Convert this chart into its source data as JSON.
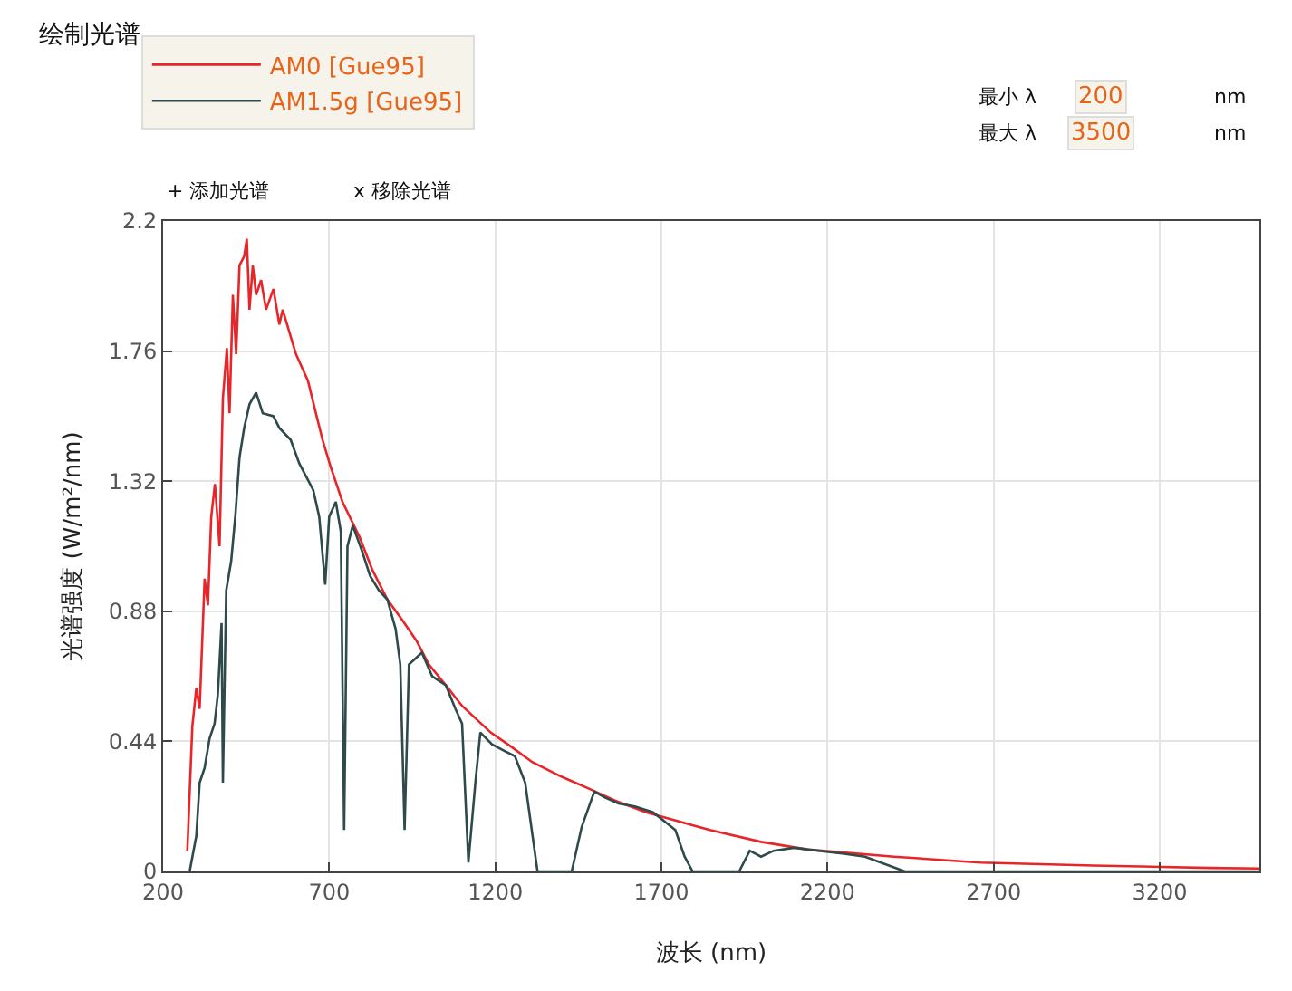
{
  "chart_data": {
    "type": "line",
    "title": "绘制光谱",
    "xlabel": "波长 (nm)",
    "ylabel": "光谱强度 (W/m²/nm)",
    "xlim": [
      200,
      3500
    ],
    "xticks": [
      200,
      700,
      1200,
      1700,
      2200,
      2700,
      3200
    ],
    "ylim": [
      0,
      2.2
    ],
    "yticks": [
      0,
      0.44,
      0.88,
      1.32,
      1.76,
      2.2
    ],
    "grid": true,
    "legend": "top left",
    "marker": "none",
    "line_style": "solid",
    "annotations": [
      "+ 添加光谱",
      "x 移除光谱",
      "最小 λ",
      "200",
      "nm",
      "最大 λ",
      "3500",
      "nm"
    ],
    "series": [
      {
        "name": "AM0 [Gue95]",
        "color": "#e8262a",
        "x": [
          273,
          288,
          300,
          310,
          325,
          335,
          345,
          356,
          370,
          380,
          392,
          400,
          410,
          420,
          430,
          444,
          452,
          460,
          470,
          480,
          495,
          510,
          532,
          550,
          560,
          584,
          600,
          620,
          636,
          660,
          680,
          704,
          740,
          792,
          830,
          875,
          920,
          963,
          1000,
          1051,
          1100,
          1186,
          1250,
          1311,
          1400,
          1482,
          1560,
          1654,
          1750,
          1846,
          2000,
          2142,
          2400,
          2661,
          3000,
          3350,
          3500
        ],
        "values": [
          0.07,
          0.49,
          0.62,
          0.55,
          0.99,
          0.9,
          1.2,
          1.31,
          1.1,
          1.6,
          1.77,
          1.55,
          1.95,
          1.75,
          2.05,
          2.08,
          2.14,
          1.9,
          2.05,
          1.95,
          2.0,
          1.9,
          1.97,
          1.85,
          1.9,
          1.81,
          1.75,
          1.7,
          1.66,
          1.55,
          1.46,
          1.37,
          1.25,
          1.13,
          1.02,
          0.92,
          0.85,
          0.78,
          0.7,
          0.63,
          0.56,
          0.47,
          0.42,
          0.37,
          0.32,
          0.28,
          0.24,
          0.2,
          0.17,
          0.14,
          0.1,
          0.074,
          0.05,
          0.03,
          0.02,
          0.012,
          0.01
        ]
      },
      {
        "name": "AM1.5g [Gue95]",
        "color": "#2f4a4a",
        "x": [
          280,
          300,
          310,
          325,
          340,
          355,
          365,
          376,
          380,
          390,
          405,
          418,
          430,
          444,
          460,
          480,
          500,
          532,
          550,
          584,
          610,
          652,
          670,
          688,
          700,
          720,
          735,
          745,
          755,
          771,
          800,
          823,
          850,
          875,
          900,
          914,
          927,
          940,
          979,
          1010,
          1051,
          1080,
          1100,
          1119,
          1140,
          1155,
          1190,
          1223,
          1259,
          1290,
          1327,
          1380,
          1430,
          1460,
          1498,
          1530,
          1571,
          1620,
          1675,
          1742,
          1770,
          1794,
          1934,
          1966,
          2000,
          2038,
          2100,
          2142,
          2250,
          2313,
          2433,
          2700,
          3000,
          3500
        ],
        "values": [
          0,
          0.12,
          0.3,
          0.35,
          0.45,
          0.5,
          0.6,
          0.84,
          0.3,
          0.95,
          1.05,
          1.21,
          1.4,
          1.5,
          1.58,
          1.62,
          1.55,
          1.54,
          1.5,
          1.46,
          1.38,
          1.29,
          1.2,
          0.97,
          1.2,
          1.25,
          1.15,
          0.14,
          1.1,
          1.17,
          1.08,
          1.0,
          0.95,
          0.92,
          0.82,
          0.7,
          0.14,
          0.7,
          0.74,
          0.66,
          0.63,
          0.55,
          0.5,
          0.03,
          0.3,
          0.47,
          0.43,
          0.41,
          0.39,
          0.3,
          0.0,
          0.0,
          0.0,
          0.15,
          0.27,
          0.25,
          0.23,
          0.22,
          0.2,
          0.14,
          0.05,
          0.0,
          0.0,
          0.07,
          0.05,
          0.07,
          0.08,
          0.074,
          0.06,
          0.05,
          0.0,
          0.0,
          0.0,
          0.0
        ]
      }
    ]
  }
}
